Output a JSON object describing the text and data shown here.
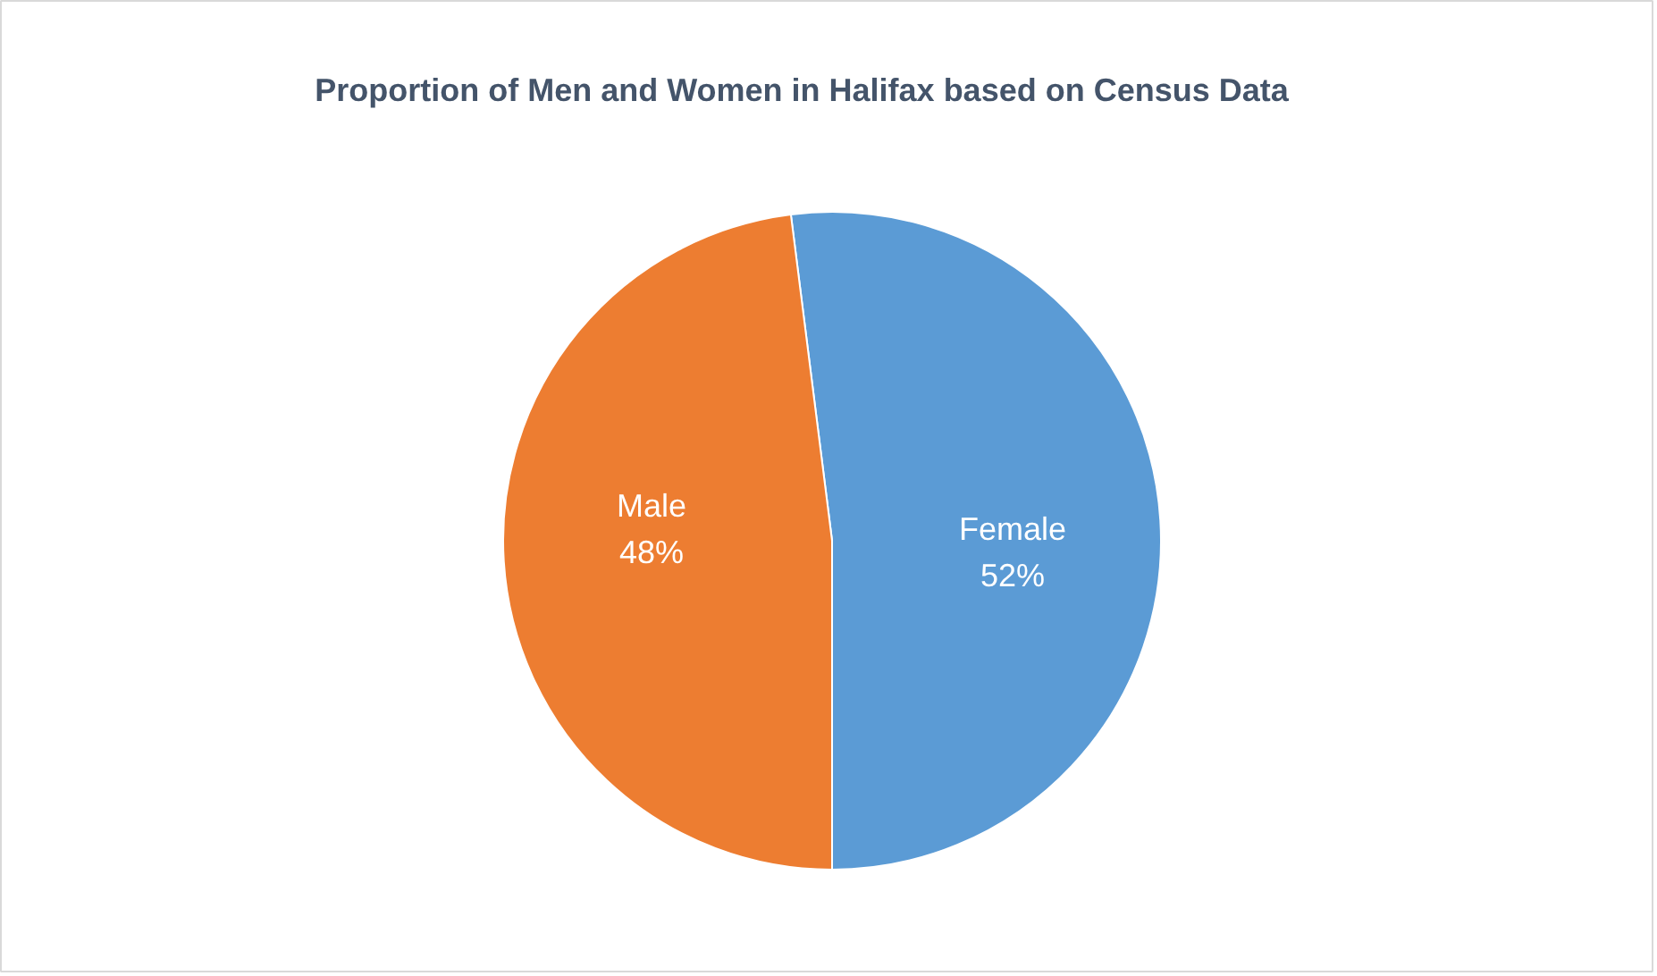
{
  "chart_data": {
    "type": "pie",
    "title": "Proportion of Men and Women in Halifax based on Census Data",
    "categories": [
      "Female",
      "Male"
    ],
    "values": [
      52,
      48
    ],
    "colors": [
      "#5b9bd5",
      "#ed7d31"
    ],
    "value_labels": [
      "52%",
      "48%"
    ]
  }
}
